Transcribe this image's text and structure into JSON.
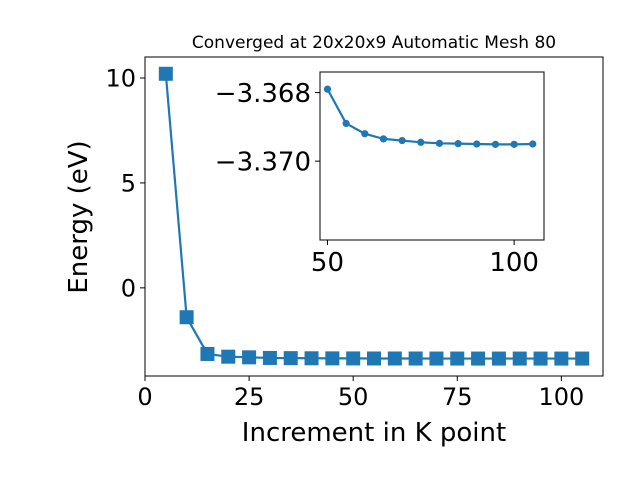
{
  "chart_data": [
    {
      "type": "line",
      "title": "Converged at 20x20x9 Automatic Mesh 80",
      "xlabel": "Increment in K point",
      "ylabel": "Energy (eV)",
      "xlim": [
        0,
        110
      ],
      "ylim": [
        -4.2,
        11
      ],
      "xticks": [
        0,
        25,
        50,
        75,
        100
      ],
      "yticks": [
        0,
        5,
        10
      ],
      "ytick_labels": [
        "0",
        "5",
        "10"
      ],
      "grid": false,
      "color": "#1f77b4",
      "marker": "square",
      "x": [
        5,
        10,
        15,
        20,
        25,
        30,
        35,
        40,
        45,
        50,
        55,
        60,
        65,
        70,
        75,
        80,
        85,
        90,
        95,
        100,
        105
      ],
      "y": [
        10.2,
        -1.4,
        -3.15,
        -3.28,
        -3.31,
        -3.34,
        -3.35,
        -3.355,
        -3.36,
        -3.362,
        -3.365,
        -3.366,
        -3.367,
        -3.368,
        -3.368,
        -3.369,
        -3.369,
        -3.369,
        -3.369,
        -3.369,
        -3.369
      ]
    },
    {
      "type": "line",
      "role": "inset",
      "xlim": [
        48,
        108
      ],
      "ylim": [
        -3.3723,
        -3.3674
      ],
      "xticks": [
        50,
        100
      ],
      "yticks": [
        -3.37,
        -3.368
      ],
      "ytick_labels": [
        "−3.370",
        "−3.368"
      ],
      "grid": false,
      "color": "#1f77b4",
      "marker": "circle",
      "x": [
        50,
        55,
        60,
        65,
        70,
        75,
        80,
        85,
        90,
        95,
        100,
        105
      ],
      "y": [
        -3.3679,
        -3.3689,
        -3.3692,
        -3.36935,
        -3.3694,
        -3.36945,
        -3.36948,
        -3.36949,
        -3.3695,
        -3.36951,
        -3.36951,
        -3.3695
      ]
    }
  ]
}
